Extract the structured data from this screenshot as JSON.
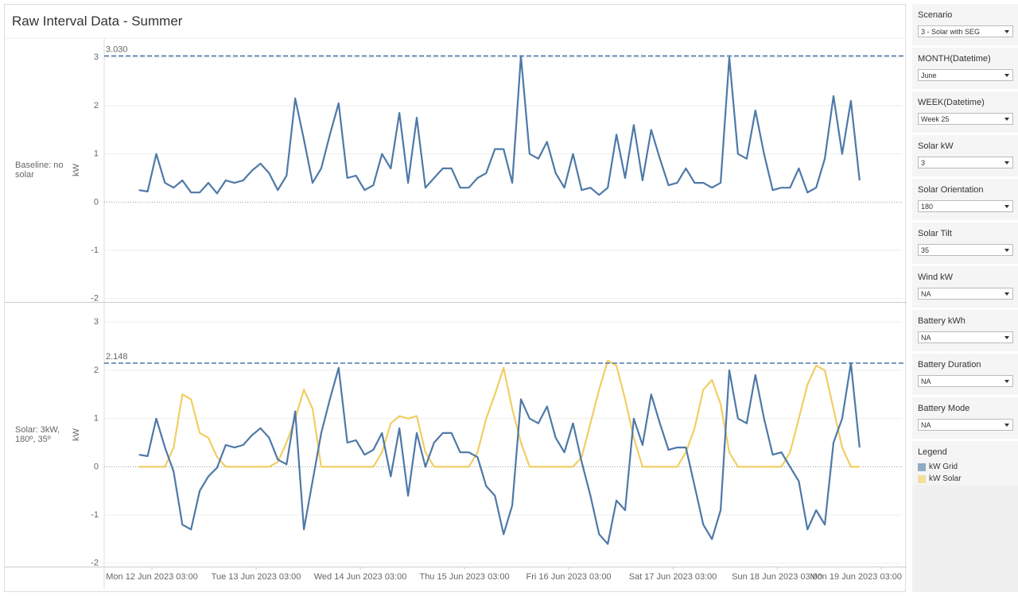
{
  "title": "Raw Interval Data - Summer",
  "chart_data": {
    "type": "line",
    "x": [
      "2023-06-12T00:00",
      "2023-06-12T02:00",
      "2023-06-12T04:00",
      "2023-06-12T06:00",
      "2023-06-12T08:00",
      "2023-06-12T10:00",
      "2023-06-12T12:00",
      "2023-06-12T14:00",
      "2023-06-12T16:00",
      "2023-06-12T18:00",
      "2023-06-12T20:00",
      "2023-06-12T22:00",
      "2023-06-13T00:00",
      "2023-06-13T02:00",
      "2023-06-13T04:00",
      "2023-06-13T06:00",
      "2023-06-13T08:00",
      "2023-06-13T10:00",
      "2023-06-13T12:00",
      "2023-06-13T14:00",
      "2023-06-13T16:00",
      "2023-06-13T18:00",
      "2023-06-13T20:00",
      "2023-06-13T22:00",
      "2023-06-14T00:00",
      "2023-06-14T02:00",
      "2023-06-14T04:00",
      "2023-06-14T06:00",
      "2023-06-14T08:00",
      "2023-06-14T10:00",
      "2023-06-14T12:00",
      "2023-06-14T14:00",
      "2023-06-14T16:00",
      "2023-06-14T18:00",
      "2023-06-14T20:00",
      "2023-06-14T22:00",
      "2023-06-15T00:00",
      "2023-06-15T02:00",
      "2023-06-15T04:00",
      "2023-06-15T06:00",
      "2023-06-15T08:00",
      "2023-06-15T10:00",
      "2023-06-15T12:00",
      "2023-06-15T14:00",
      "2023-06-15T16:00",
      "2023-06-15T18:00",
      "2023-06-15T20:00",
      "2023-06-15T22:00",
      "2023-06-16T00:00",
      "2023-06-16T02:00",
      "2023-06-16T04:00",
      "2023-06-16T06:00",
      "2023-06-16T08:00",
      "2023-06-16T10:00",
      "2023-06-16T12:00",
      "2023-06-16T14:00",
      "2023-06-16T16:00",
      "2023-06-16T18:00",
      "2023-06-16T20:00",
      "2023-06-16T22:00",
      "2023-06-17T00:00",
      "2023-06-17T02:00",
      "2023-06-17T04:00",
      "2023-06-17T06:00",
      "2023-06-17T08:00",
      "2023-06-17T10:00",
      "2023-06-17T12:00",
      "2023-06-17T14:00",
      "2023-06-17T16:00",
      "2023-06-17T18:00",
      "2023-06-17T20:00",
      "2023-06-17T22:00",
      "2023-06-18T00:00",
      "2023-06-18T02:00",
      "2023-06-18T04:00",
      "2023-06-18T06:00",
      "2023-06-18T08:00",
      "2023-06-18T10:00",
      "2023-06-18T12:00",
      "2023-06-18T14:00",
      "2023-06-18T16:00",
      "2023-06-18T18:00",
      "2023-06-18T20:00",
      "2023-06-18T22:00"
    ],
    "xlim": [
      "2023-06-11T16:00",
      "2023-06-19T07:45"
    ],
    "xticks": [
      {
        "value": "2023-06-12T03:00",
        "label": "Mon 12 Jun 2023 03:00"
      },
      {
        "value": "2023-06-13T03:00",
        "label": "Tue 13 Jun 2023 03:00"
      },
      {
        "value": "2023-06-14T03:00",
        "label": "Wed 14 Jun 2023 03:00"
      },
      {
        "value": "2023-06-15T03:00",
        "label": "Thu 15 Jun 2023 03:00"
      },
      {
        "value": "2023-06-16T03:00",
        "label": "Fri 16 Jun 2023 03:00"
      },
      {
        "value": "2023-06-17T03:00",
        "label": "Sat 17 Jun 2023 03:00"
      },
      {
        "value": "2023-06-18T03:00",
        "label": "Sun 18 Jun 2023 03:00"
      },
      {
        "value": "2023-06-19T03:00",
        "label": "Mon 19 Jun 2023 03:00"
      }
    ],
    "ylim": [
      -2.07,
      3.4
    ],
    "yticks": [
      -2,
      -1,
      0,
      1,
      2,
      3
    ],
    "grid": true,
    "panels": [
      {
        "label": "Baseline: no solar",
        "ylabel": "kW",
        "ref_line": {
          "value": 3.03,
          "label": "3.030"
        },
        "series": [
          {
            "color": "#4e79a7",
            "values": [
              0.25,
              0.22,
              1.0,
              0.4,
              0.3,
              0.45,
              0.2,
              0.2,
              0.4,
              0.18,
              0.45,
              0.4,
              0.45,
              0.65,
              0.8,
              0.6,
              0.25,
              0.55,
              2.15,
              1.3,
              0.4,
              0.7,
              1.4,
              2.05,
              0.5,
              0.55,
              0.25,
              0.35,
              1.0,
              0.7,
              1.85,
              0.4,
              1.75,
              0.3,
              0.5,
              0.7,
              0.7,
              0.3,
              0.3,
              0.5,
              0.6,
              1.1,
              1.1,
              0.4,
              3.03,
              1.0,
              0.9,
              1.25,
              0.6,
              0.3,
              1.0,
              0.25,
              0.3,
              0.15,
              0.3,
              1.4,
              0.5,
              1.6,
              0.45,
              1.5,
              0.9,
              0.35,
              0.4,
              0.7,
              0.4,
              0.4,
              0.3,
              0.4,
              3.0,
              1.0,
              0.9,
              1.9,
              1.0,
              0.25,
              0.3,
              0.3,
              0.7,
              0.2,
              0.3,
              0.9,
              2.2,
              1.0,
              2.1,
              0.45
            ]
          }
        ]
      },
      {
        "label": "Solar: 3kW, 180º, 35º",
        "ylabel": "kW",
        "ref_line": {
          "value": 2.148,
          "label": "2.148"
        },
        "series": [
          {
            "name": "kW Solar",
            "color": "#f1ce63",
            "values": [
              0,
              0,
              0,
              0,
              0.4,
              1.5,
              1.4,
              0.7,
              0.6,
              0.2,
              0,
              0,
              0,
              0,
              0,
              0,
              0.1,
              0.5,
              1.0,
              1.6,
              1.2,
              0,
              0,
              0,
              0,
              0,
              0,
              0,
              0.3,
              0.9,
              1.05,
              1.0,
              1.05,
              0.3,
              0,
              0,
              0,
              0,
              0,
              0.3,
              1.0,
              1.5,
              2.05,
              1.2,
              0.5,
              0,
              0,
              0,
              0,
              0,
              0,
              0.2,
              0.9,
              1.6,
              2.2,
              2.1,
              1.4,
              0.6,
              0,
              0,
              0,
              0,
              0,
              0.3,
              0.8,
              1.6,
              1.8,
              1.3,
              0.3,
              0,
              0,
              0,
              0,
              0,
              0,
              0.3,
              1.0,
              1.7,
              2.1,
              2.0,
              1.2,
              0.4,
              0,
              0
            ]
          },
          {
            "name": "kW Grid",
            "color": "#4e79a7",
            "values": [
              0.25,
              0.22,
              1.0,
              0.4,
              -0.1,
              -1.2,
              -1.3,
              -0.5,
              -0.2,
              -0.02,
              0.45,
              0.4,
              0.45,
              0.65,
              0.8,
              0.6,
              0.15,
              0.05,
              1.15,
              -1.3,
              -0.3,
              0.7,
              1.4,
              2.05,
              0.5,
              0.55,
              0.25,
              0.35,
              0.7,
              -0.2,
              0.8,
              -0.6,
              0.7,
              0.0,
              0.5,
              0.7,
              0.7,
              0.3,
              0.3,
              0.2,
              -0.4,
              -0.6,
              -1.4,
              -0.8,
              1.4,
              1.0,
              0.9,
              1.25,
              0.6,
              0.3,
              0.9,
              0.1,
              -0.6,
              -1.4,
              -1.6,
              -0.7,
              -0.9,
              1.0,
              0.45,
              1.5,
              0.9,
              0.35,
              0.4,
              0.4,
              -0.4,
              -1.2,
              -1.5,
              -0.9,
              2.0,
              1.0,
              0.9,
              1.9,
              1.0,
              0.25,
              0.3,
              0.0,
              -0.3,
              -1.3,
              -0.9,
              -1.2,
              0.5,
              1.0,
              2.148,
              0.4
            ]
          }
        ]
      }
    ]
  },
  "filters": [
    {
      "label": "Scenario",
      "value": "3 - Solar with SEG"
    },
    {
      "label": "MONTH(Datetime)",
      "value": "June"
    },
    {
      "label": "WEEK(Datetime)",
      "value": "Week 25"
    },
    {
      "label": "Solar kW",
      "value": "3"
    },
    {
      "label": "Solar Orientation",
      "value": "180"
    },
    {
      "label": "Solar Tilt",
      "value": "35"
    },
    {
      "label": "Wind kW",
      "value": "NA"
    },
    {
      "label": "Battery kWh",
      "value": "NA"
    },
    {
      "label": "Battery Duration",
      "value": "NA"
    },
    {
      "label": "Battery Mode",
      "value": "NA"
    }
  ],
  "legend_title": "Legend"
}
